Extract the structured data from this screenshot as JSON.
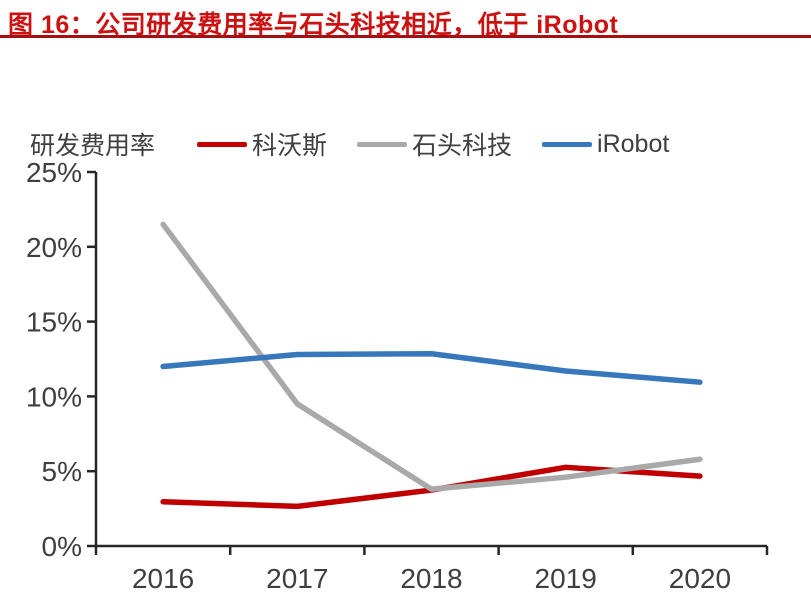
{
  "header": {
    "title": "图 16：公司研发费用率与石头科技相近，低于 iRobot",
    "title_color": "#cc1111",
    "rule_color": "#a60f12"
  },
  "chart_data": {
    "type": "line",
    "title": "公司研发费用率与石头科技相近，低于 iRobot",
    "ylabel": "研发费用率",
    "xlabel": "",
    "categories": [
      "2016",
      "2017",
      "2018",
      "2019",
      "2020"
    ],
    "series": [
      {
        "name": "科沃斯",
        "color": "#c00000",
        "values": [
          2.96,
          2.65,
          3.74,
          5.26,
          4.67
        ]
      },
      {
        "name": "石头科技",
        "color": "#a9a9a9",
        "values": [
          21.5,
          9.5,
          3.8,
          4.6,
          5.8
        ]
      },
      {
        "name": "iRobot",
        "color": "#3778bc",
        "values": [
          12.0,
          12.8,
          12.85,
          11.7,
          10.95
        ]
      }
    ],
    "ylim": [
      0,
      25
    ],
    "ytick_step": 5,
    "ytick_labels": [
      "0%",
      "5%",
      "10%",
      "15%",
      "20%",
      "25%"
    ],
    "grid": false,
    "legend_position": "top",
    "axis_color": "#262626",
    "text_color": "#3f3f3f",
    "line_width": 5.5
  }
}
